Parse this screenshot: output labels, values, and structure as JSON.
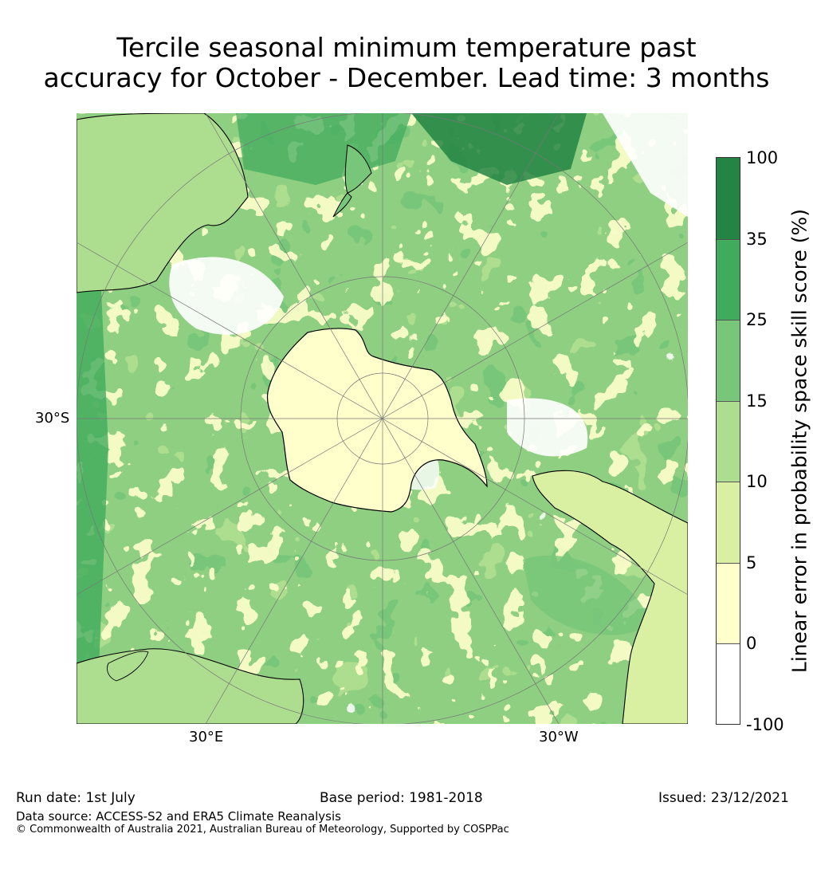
{
  "title": {
    "line1": "Tercile seasonal minimum temperature past",
    "line2": "accuracy for October - December. Lead time: 3 months"
  },
  "map": {
    "projection": "south-polar-stereographic",
    "labels": {
      "lat": "30°S",
      "east": "30°E",
      "west": "30°W"
    },
    "land_outline_color": "#000000",
    "gridline_color": "#777777"
  },
  "colorbar": {
    "label": "Linear error in probability space skill score (%)",
    "ticks": [
      "100",
      "35",
      "25",
      "15",
      "10",
      "5",
      "0",
      "-100"
    ],
    "bins": [
      {
        "range": "-100 to 0",
        "color": "#ffffff"
      },
      {
        "range": "0 to 5",
        "color": "#ffffcc"
      },
      {
        "range": "5 to 10",
        "color": "#d9f0a3"
      },
      {
        "range": "10 to 15",
        "color": "#addd8e"
      },
      {
        "range": "15 to 25",
        "color": "#78c679"
      },
      {
        "range": "25 to 35",
        "color": "#41ab5d"
      },
      {
        "range": "35 to 100",
        "color": "#238443"
      }
    ]
  },
  "footer": {
    "run_date": "Run date: 1st July",
    "base_period": "Base period: 1981-2018",
    "issued": "Issued: 23/12/2021",
    "data_source": "Data source: ACCESS-S2 and ERA5 Climate Reanalysis",
    "copyright": "© Commonwealth of Australia 2021, Australian Bureau of Meteorology, Supported by COSPPac"
  }
}
